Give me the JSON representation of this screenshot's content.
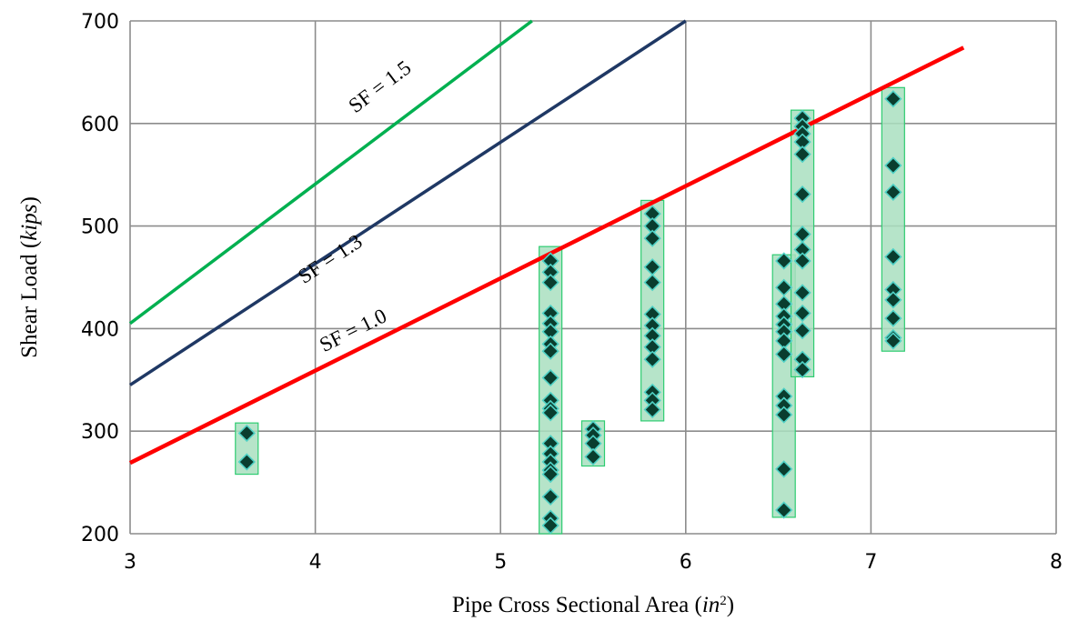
{
  "chart_data": {
    "type": "scatter",
    "title": "",
    "xlabel": {
      "text": "Pipe Cross Sectional Area (",
      "italic": "in",
      "sup": "2",
      "close": ")"
    },
    "ylabel": {
      "text": "Shear Load (",
      "italic": "kips",
      "close": ")"
    },
    "xlim": [
      3,
      8
    ],
    "ylim": [
      200,
      700
    ],
    "x_ticks": [
      3,
      4,
      5,
      6,
      7,
      8
    ],
    "y_ticks": [
      200,
      300,
      400,
      500,
      600,
      700
    ],
    "grid": true,
    "lines": [
      {
        "label": "SF = 1.5",
        "color": "#00b050",
        "points": [
          [
            3,
            405
          ],
          [
            5.17,
            700
          ]
        ]
      },
      {
        "label": "SF = 1.3",
        "color": "#1f3864",
        "points": [
          [
            3,
            345
          ],
          [
            6,
            700
          ]
        ]
      },
      {
        "label": "SF = 1.0",
        "color": "#ff0000",
        "points": [
          [
            3,
            269
          ],
          [
            7.5,
            674
          ]
        ]
      }
    ],
    "range_boxes": [
      {
        "x_center": 3.63,
        "ymin": 258,
        "ymax": 308
      },
      {
        "x_center": 5.27,
        "ymin": 200,
        "ymax": 480
      },
      {
        "x_center": 5.5,
        "ymin": 266,
        "ymax": 310
      },
      {
        "x_center": 5.82,
        "ymin": 310,
        "ymax": 525
      },
      {
        "x_center": 6.53,
        "ymin": 216,
        "ymax": 472
      },
      {
        "x_center": 6.63,
        "ymin": 353,
        "ymax": 613
      },
      {
        "x_center": 7.12,
        "ymin": 378,
        "ymax": 635
      }
    ],
    "series": [
      {
        "x": 3.63,
        "values": [
          298,
          270
        ]
      },
      {
        "x": 5.27,
        "values": [
          466,
          455,
          445,
          415,
          405,
          397,
          385,
          378,
          352,
          330,
          322,
          318,
          288,
          278,
          270,
          262,
          258,
          236,
          215,
          208
        ]
      },
      {
        "x": 5.5,
        "values": [
          302,
          296,
          288,
          275
        ]
      },
      {
        "x": 5.82,
        "values": [
          512,
          500,
          488,
          460,
          445,
          414,
          403,
          393,
          382,
          370,
          338,
          330,
          321
        ]
      },
      {
        "x": 6.53,
        "values": [
          466,
          440,
          424,
          412,
          404,
          397,
          388,
          375,
          334,
          325,
          316,
          263,
          223
        ]
      },
      {
        "x": 6.63,
        "values": [
          605,
          597,
          590,
          582,
          570,
          531,
          492,
          477,
          466,
          435,
          415,
          398,
          370,
          360
        ]
      },
      {
        "x": 7.12,
        "values": [
          624,
          559,
          533,
          470,
          438,
          428,
          410,
          391,
          388
        ]
      }
    ],
    "colors": {
      "grid": "#8c8c8c",
      "box_fill": "#a9dfbf",
      "box_stroke": "#2ecc71",
      "marker_fill": "#0a3d2e",
      "marker_stroke": "#4fd1c5"
    }
  }
}
